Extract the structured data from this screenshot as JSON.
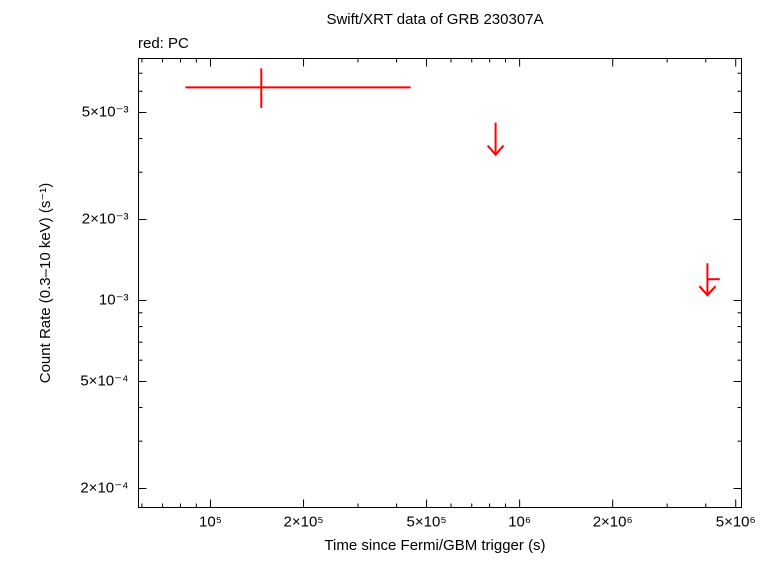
{
  "chart_data": {
    "type": "scatter",
    "title": "Swift/XRT data of GRB 230307A",
    "legend": "red: PC",
    "x_label": "Time since Fermi/GBM trigger (s)",
    "y_label": "Count Rate (0.3–10 keV) (s⁻¹)",
    "log_x": true,
    "log_y": true,
    "xlim": [
      58500,
      5220000
    ],
    "ylim": [
      0.00017,
      0.00794
    ],
    "xticks": [
      {
        "value": 100000,
        "label": "10⁵"
      },
      {
        "value": 200000,
        "label": "2×10⁵"
      },
      {
        "value": 500000,
        "label": "5×10⁵"
      },
      {
        "value": 1000000,
        "label": "10⁶"
      },
      {
        "value": 2000000,
        "label": "2×10⁶"
      },
      {
        "value": 5000000,
        "label": "5×10⁶"
      }
    ],
    "xticks_minor": [
      60000,
      70000,
      80000,
      90000,
      300000,
      400000,
      600000,
      700000,
      800000,
      900000,
      3000000,
      4000000
    ],
    "yticks": [
      {
        "value": 0.0002,
        "label": "2×10⁻⁴"
      },
      {
        "value": 0.0005,
        "label": "5×10⁻⁴"
      },
      {
        "value": 0.001,
        "label": "10⁻³"
      },
      {
        "value": 0.002,
        "label": "2×10⁻³"
      },
      {
        "value": 0.005,
        "label": "5×10⁻³"
      }
    ],
    "yticks_minor": [
      0.0003,
      0.0004,
      0.0006,
      0.0007,
      0.0008,
      0.0009,
      0.003,
      0.004,
      0.006,
      0.007
    ],
    "series": [
      {
        "color": "#ff0000",
        "x": [
          146000
        ],
        "xerr_low": [
          63000
        ],
        "xerr_high": [
          298000
        ],
        "y": [
          0.0062
        ],
        "yerr_low": [
          0.001
        ],
        "yerr_high": [
          0.0011
        ]
      }
    ],
    "upper_limits": {
      "color": "#ff0000",
      "x": [
        836000,
        4050000
      ],
      "xerr_low": [
        0,
        0
      ],
      "xerr_high": [
        0,
        390000
      ],
      "y": [
        0.004,
        0.0012
      ]
    }
  }
}
